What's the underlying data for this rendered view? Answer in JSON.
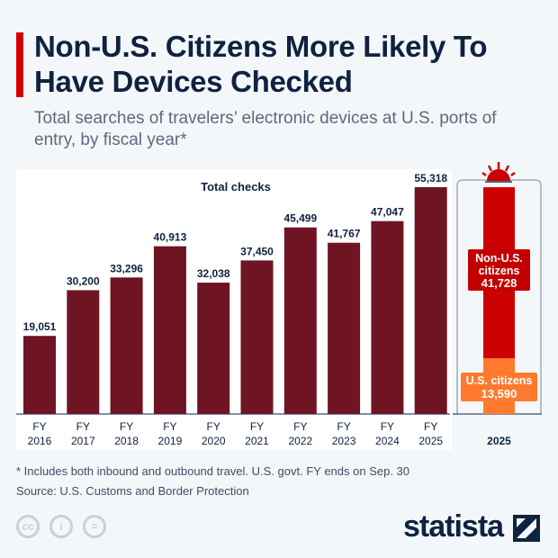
{
  "title": "Non-U.S. Citizens More Likely To Have Devices Checked",
  "subtitle": "Total searches of travelers’ electronic devices at U.S. ports of entry, by fiscal year*",
  "chart_data": [
    {
      "type": "bar",
      "title": "Total checks",
      "categories": [
        "FY 2016",
        "FY 2017",
        "FY 2018",
        "FY 2019",
        "FY 2020",
        "FY 2021",
        "FY 2022",
        "FY 2023",
        "FY 2024",
        "FY 2025"
      ],
      "values": [
        19051,
        30200,
        33296,
        40913,
        32038,
        37450,
        45499,
        41767,
        47047,
        55318
      ],
      "value_labels": [
        "19,051",
        "30,200",
        "33,296",
        "40,913",
        "32,038",
        "37,450",
        "45,499",
        "41,767",
        "47,047",
        "55,318"
      ],
      "colors": {
        "bar": "#6e1423"
      }
    },
    {
      "type": "bar",
      "stacked": true,
      "categories": [
        "2025"
      ],
      "series": [
        {
          "name": "U.S. citizens",
          "values": [
            13590
          ],
          "label": "13,590",
          "color": "#ff7a2e"
        },
        {
          "name": "Non-U.S. citizens",
          "values": [
            41728
          ],
          "label": "41,728",
          "color": "#cc0000"
        }
      ]
    }
  ],
  "footnote": "* Includes both inbound and outbound travel. U.S. govt. FY ends on Sep. 30",
  "source": "Source: U.S. Customs and Border Protection",
  "logo": "statista",
  "icons": [
    "cc-icon",
    "by-icon",
    "nd-icon",
    "siren-icon"
  ]
}
